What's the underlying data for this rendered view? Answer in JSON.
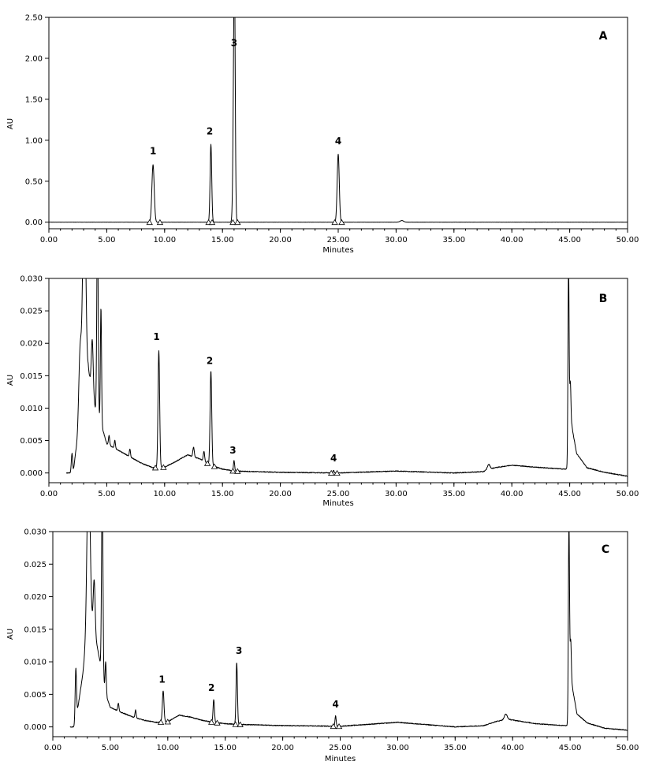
{
  "chart_data": [
    {
      "type": "line",
      "panel": "A",
      "xlabel": "Minutes",
      "ylabel": "AU",
      "xlim": [
        0,
        50
      ],
      "ylim": [
        -0.08,
        2.5
      ],
      "x_ticks": [
        "0.00",
        "5.00",
        "10.00",
        "15.00",
        "20.00",
        "25.00",
        "30.00",
        "35.00",
        "40.00",
        "45.00",
        "50.00"
      ],
      "y_ticks": [
        "0.00",
        "0.50",
        "1.00",
        "1.50",
        "2.00",
        "2.50"
      ],
      "y_tick_values": [
        0,
        0.5,
        1.0,
        1.5,
        2.0,
        2.5
      ],
      "baseline": 0.0,
      "noise": 0.002,
      "peaks": [
        {
          "t": 9.0,
          "h": 0.7,
          "w": 0.1
        },
        {
          "t": 14.0,
          "h": 0.95,
          "w": 0.07
        },
        {
          "t": 16.0,
          "h": 2.02,
          "w": 0.08
        },
        {
          "t": 16.05,
          "h": 1.3,
          "w": 0.06
        },
        {
          "t": 25.0,
          "h": 0.83,
          "w": 0.09
        },
        {
          "t": 30.5,
          "h": 0.02,
          "w": 0.15
        }
      ],
      "peak_labels": [
        {
          "text": "1",
          "t": 9.0,
          "y": 0.83
        },
        {
          "text": "2",
          "t": 13.9,
          "y": 1.07
        },
        {
          "text": "3",
          "t": 16.0,
          "y": 2.15
        },
        {
          "text": "4",
          "t": 25.0,
          "y": 0.95
        }
      ],
      "markers": [
        8.7,
        9.6,
        13.8,
        14.1,
        15.9,
        16.3,
        24.7,
        25.3
      ]
    },
    {
      "type": "line",
      "panel": "B",
      "xlabel": "Minutes",
      "ylabel": "AU",
      "xlim": [
        0,
        50
      ],
      "ylim": [
        -0.0015,
        0.03
      ],
      "x_ticks": [
        "0.00",
        "5.00",
        "10.00",
        "15.00",
        "20.00",
        "25.00",
        "30.00",
        "35.00",
        "40.00",
        "45.00",
        "50.00"
      ],
      "y_ticks": [
        "0.000",
        "0.005",
        "0.010",
        "0.015",
        "0.020",
        "0.025",
        "0.030"
      ],
      "y_tick_values": [
        0,
        0.005,
        0.01,
        0.015,
        0.02,
        0.025,
        0.03
      ],
      "noise": 0.00012,
      "trace_start": 1.5,
      "background": [
        [
          1.5,
          0.0
        ],
        [
          2.1,
          0.0
        ],
        [
          2.3,
          0.003
        ],
        [
          2.8,
          0.008
        ],
        [
          3.4,
          0.016
        ],
        [
          4.0,
          0.01
        ],
        [
          4.6,
          0.007
        ],
        [
          5.0,
          0.0045
        ],
        [
          6.0,
          0.0035
        ],
        [
          7.0,
          0.0025
        ],
        [
          8.0,
          0.0015
        ],
        [
          9.0,
          0.0008
        ],
        [
          10.0,
          0.0009
        ],
        [
          11.0,
          0.0018
        ],
        [
          12.0,
          0.0028
        ],
        [
          13.0,
          0.0022
        ],
        [
          14.0,
          0.0012
        ],
        [
          15.0,
          0.0006
        ],
        [
          16.0,
          0.0003
        ],
        [
          18.0,
          0.0002
        ],
        [
          20.0,
          0.0001
        ],
        [
          25.0,
          0.0
        ],
        [
          30.0,
          0.0003
        ],
        [
          35.0,
          0.0
        ],
        [
          37.5,
          0.0002
        ],
        [
          38.5,
          0.0008
        ],
        [
          40.0,
          0.0012
        ],
        [
          42.0,
          0.0009
        ],
        [
          44.5,
          0.0006
        ],
        [
          44.9,
          0.0006
        ],
        [
          45.2,
          0.007
        ],
        [
          45.6,
          0.003
        ],
        [
          46.5,
          0.0008
        ],
        [
          48.0,
          0.0001
        ],
        [
          50.0,
          -0.0005
        ]
      ],
      "peaks": [
        {
          "t": 2.0,
          "h": 0.003,
          "w": 0.06
        },
        {
          "t": 2.7,
          "h": 0.012,
          "w": 0.12
        },
        {
          "t": 3.05,
          "h": 0.035,
          "w": 0.13
        },
        {
          "t": 3.75,
          "h": 0.008,
          "w": 0.08
        },
        {
          "t": 4.2,
          "h": 0.03,
          "w": 0.06
        },
        {
          "t": 4.5,
          "h": 0.018,
          "w": 0.05
        },
        {
          "t": 5.2,
          "h": 0.0015,
          "w": 0.05
        },
        {
          "t": 5.7,
          "h": 0.0012,
          "w": 0.05
        },
        {
          "t": 7.0,
          "h": 0.0012,
          "w": 0.05
        },
        {
          "t": 9.5,
          "h": 0.018,
          "w": 0.07
        },
        {
          "t": 12.5,
          "h": 0.0015,
          "w": 0.06
        },
        {
          "t": 13.4,
          "h": 0.0015,
          "w": 0.06
        },
        {
          "t": 14.0,
          "h": 0.0145,
          "w": 0.07
        },
        {
          "t": 16.0,
          "h": 0.0016,
          "w": 0.05
        },
        {
          "t": 24.6,
          "h": 0.0004,
          "w": 0.05
        },
        {
          "t": 38.0,
          "h": 0.0008,
          "w": 0.12
        },
        {
          "t": 44.9,
          "h": 0.031,
          "w": 0.05
        },
        {
          "t": 45.05,
          "h": 0.01,
          "w": 0.06
        }
      ],
      "peak_labels": [
        {
          "text": "1",
          "t": 9.3,
          "y": 0.0205
        },
        {
          "text": "2",
          "t": 13.9,
          "y": 0.0168
        },
        {
          "text": "3",
          "t": 15.9,
          "y": 0.003
        },
        {
          "text": "4",
          "t": 24.6,
          "y": 0.0018
        }
      ],
      "markers": [
        9.2,
        9.9,
        13.7,
        14.3,
        15.9,
        16.3,
        24.4,
        24.9
      ]
    },
    {
      "type": "line",
      "panel": "C",
      "xlabel": "Minutes",
      "ylabel": "AU",
      "xlim": [
        0,
        50
      ],
      "ylim": [
        -0.0015,
        0.03
      ],
      "x_ticks": [
        "0.00",
        "5.00",
        "10.00",
        "15.00",
        "20.00",
        "25.00",
        "30.00",
        "35.00",
        "40.00",
        "45.00",
        "50.00"
      ],
      "y_ticks": [
        "0.000",
        "0.005",
        "0.010",
        "0.015",
        "0.020",
        "0.025",
        "0.030"
      ],
      "y_tick_values": [
        0,
        0.005,
        0.01,
        0.015,
        0.02,
        0.025,
        0.03
      ],
      "noise": 0.00012,
      "trace_start": 1.5,
      "background": [
        [
          1.5,
          0.0
        ],
        [
          1.9,
          0.0
        ],
        [
          2.1,
          0.002
        ],
        [
          2.6,
          0.008
        ],
        [
          3.2,
          0.018
        ],
        [
          3.9,
          0.012
        ],
        [
          4.6,
          0.005
        ],
        [
          5.0,
          0.003
        ],
        [
          6.0,
          0.0022
        ],
        [
          7.0,
          0.0015
        ],
        [
          8.0,
          0.001
        ],
        [
          9.0,
          0.0007
        ],
        [
          10.0,
          0.0008
        ],
        [
          11.0,
          0.0018
        ],
        [
          12.0,
          0.0015
        ],
        [
          13.0,
          0.001
        ],
        [
          14.0,
          0.0007
        ],
        [
          15.0,
          0.0005
        ],
        [
          16.0,
          0.0004
        ],
        [
          18.0,
          0.0003
        ],
        [
          20.0,
          0.0002
        ],
        [
          25.0,
          0.0001
        ],
        [
          30.0,
          0.0007
        ],
        [
          35.0,
          0.0
        ],
        [
          37.5,
          0.0002
        ],
        [
          38.5,
          0.0008
        ],
        [
          39.5,
          0.0012
        ],
        [
          42.0,
          0.0005
        ],
        [
          44.5,
          0.0002
        ],
        [
          44.9,
          0.0002
        ],
        [
          45.2,
          0.006
        ],
        [
          45.6,
          0.002
        ],
        [
          46.5,
          0.0006
        ],
        [
          48.0,
          -0.0002
        ],
        [
          50.0,
          -0.0005
        ]
      ],
      "peaks": [
        {
          "t": 2.0,
          "h": 0.008,
          "w": 0.06
        },
        {
          "t": 3.1,
          "h": 0.025,
          "w": 0.13
        },
        {
          "t": 3.6,
          "h": 0.008,
          "w": 0.08
        },
        {
          "t": 4.3,
          "h": 0.03,
          "w": 0.06
        },
        {
          "t": 4.6,
          "h": 0.005,
          "w": 0.05
        },
        {
          "t": 5.7,
          "h": 0.0012,
          "w": 0.05
        },
        {
          "t": 7.2,
          "h": 0.0012,
          "w": 0.05
        },
        {
          "t": 9.6,
          "h": 0.0048,
          "w": 0.07
        },
        {
          "t": 14.0,
          "h": 0.0035,
          "w": 0.06
        },
        {
          "t": 16.0,
          "h": 0.0095,
          "w": 0.06
        },
        {
          "t": 24.6,
          "h": 0.0016,
          "w": 0.05
        },
        {
          "t": 39.4,
          "h": 0.0008,
          "w": 0.12
        },
        {
          "t": 44.9,
          "h": 0.031,
          "w": 0.05
        },
        {
          "t": 45.05,
          "h": 0.01,
          "w": 0.06
        }
      ],
      "peak_labels": [
        {
          "text": "1",
          "t": 9.5,
          "y": 0.0068
        },
        {
          "text": "2",
          "t": 13.8,
          "y": 0.0055
        },
        {
          "text": "3",
          "t": 16.2,
          "y": 0.0112
        },
        {
          "text": "4",
          "t": 24.6,
          "y": 0.003
        }
      ],
      "markers": [
        9.4,
        10.0,
        13.8,
        14.3,
        15.9,
        16.3,
        24.4,
        24.9
      ]
    }
  ]
}
